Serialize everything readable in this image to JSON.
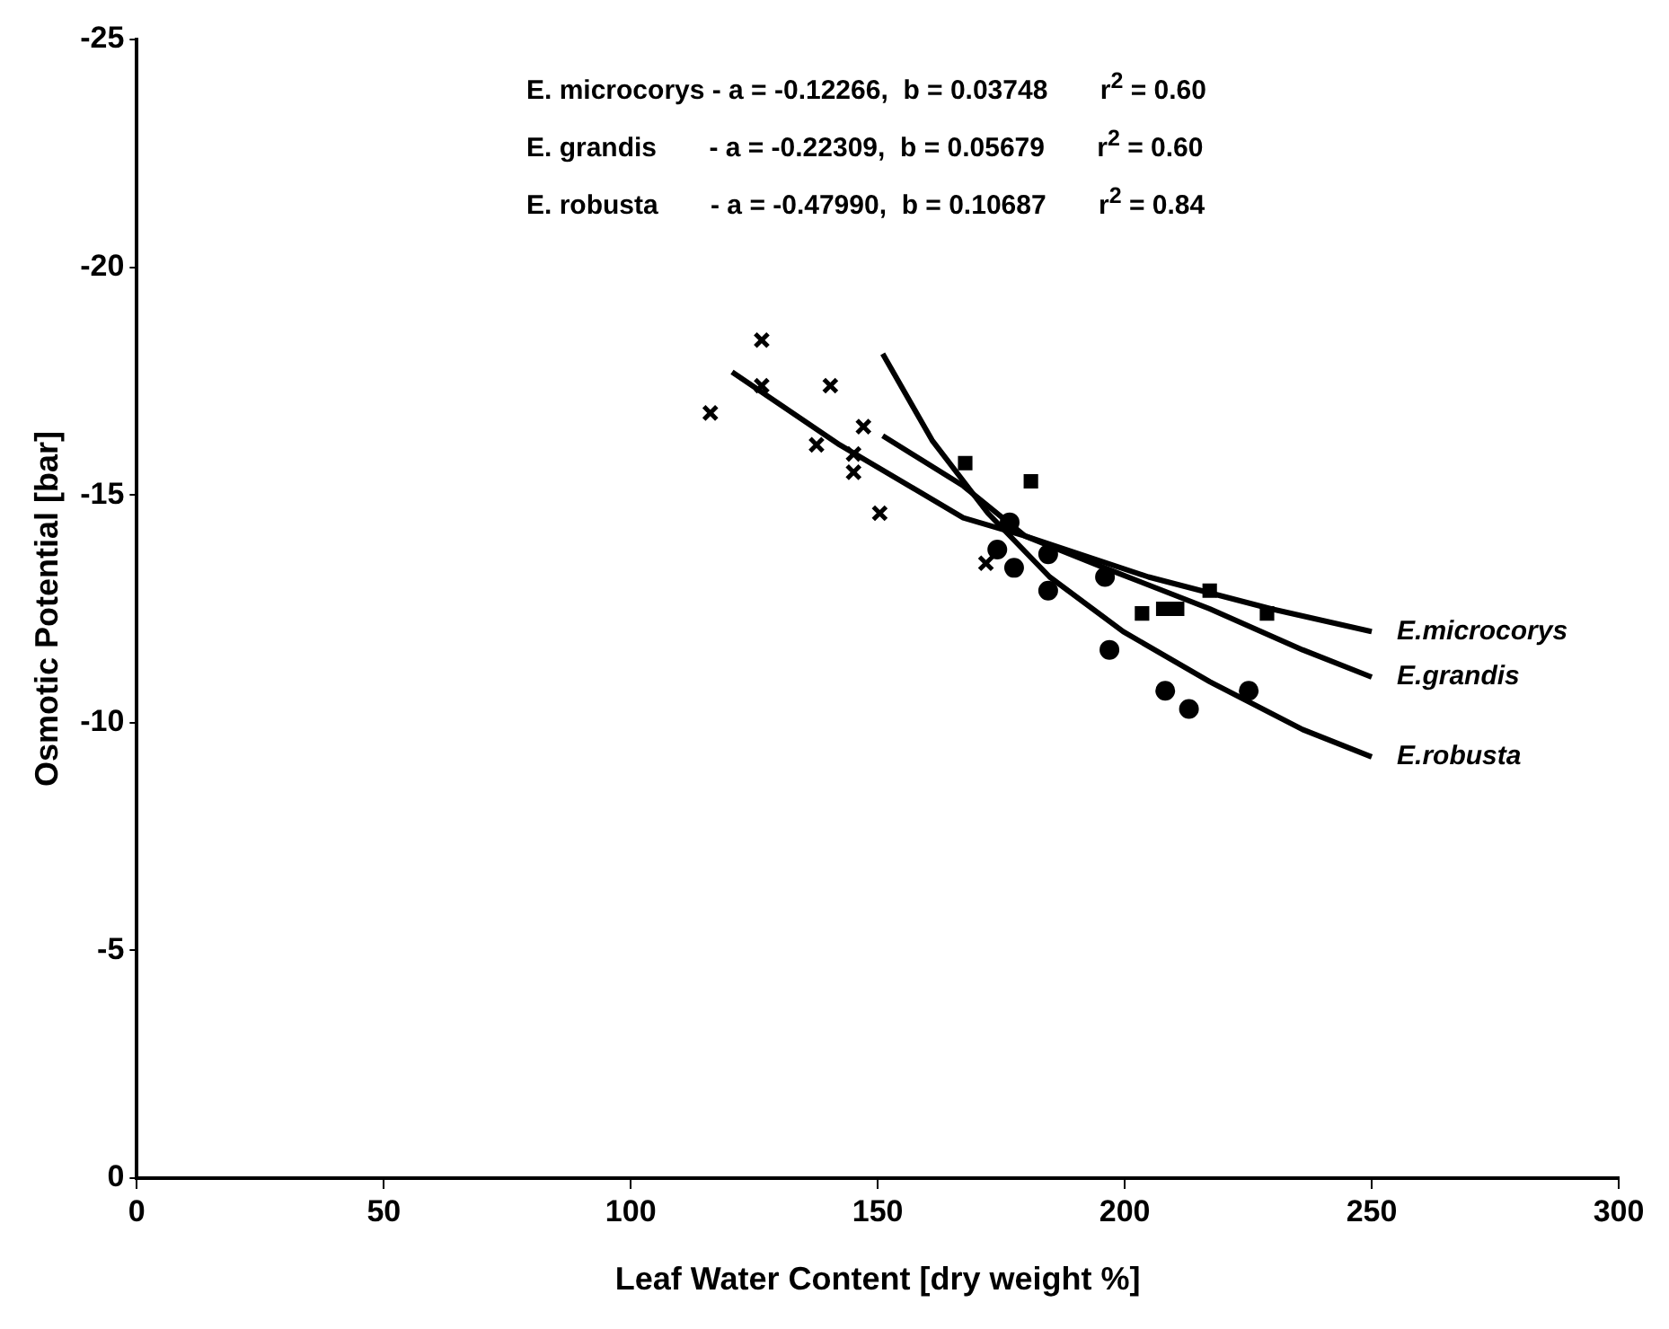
{
  "chart_data": {
    "type": "scatter",
    "xlabel": "Leaf Water Content [dry weight %]",
    "ylabel": "Osmotic Potential [bar]",
    "xlim": [
      0,
      300
    ],
    "xticks": [
      0,
      50,
      100,
      150,
      200,
      250,
      300
    ],
    "ylim": [
      0,
      -25
    ],
    "yticks": [
      0,
      -5,
      -10,
      -15,
      -20,
      -25
    ],
    "grid": false,
    "legend": false,
    "annotations": [
      "E. microcorys - a = -0.12266,  b = 0.03748       r$^{2}$ = 0.60",
      "E. grandis       - a = -0.22309,  b = 0.05679       r$^{2}$ = 0.60",
      "E. robusta       - a = -0.47990,  b = 0.10687       r$^{2}$ = 0.84"
    ],
    "series": [
      {
        "type": "scatter",
        "color": "#000000",
        "marker": "cross",
        "x": [
          116.1,
          126.5,
          126.5,
          140.4,
          137.6,
          147.1,
          145.1,
          145.1,
          150.4,
          171.9
        ],
        "values": [
          -16.8,
          -18.4,
          -17.4,
          -17.4,
          -16.1,
          -16.5,
          -15.9,
          -15.5,
          -14.6,
          -13.5
        ]
      },
      {
        "type": "scatter",
        "color": "#000000",
        "marker": "square",
        "x": [
          167.7,
          181.0,
          203.5,
          207.8,
          210.6,
          217.2,
          228.8
        ],
        "values": [
          -15.7,
          -15.3,
          -12.4,
          -12.5,
          -12.5,
          -12.9,
          -12.4
        ]
      },
      {
        "type": "scatter",
        "color": "#000000",
        "marker": "circle",
        "x": [
          174.2,
          176.7,
          177.6,
          184.5,
          184.5,
          196.0,
          196.9,
          208.2,
          213.0,
          225.1
        ],
        "values": [
          -13.8,
          -14.4,
          -13.4,
          -13.7,
          -12.9,
          -13.2,
          -11.6,
          -10.7,
          -10.3,
          -10.7
        ]
      },
      {
        "type": "line",
        "name": "E.microcorys",
        "color": "#000000",
        "marker": "none",
        "line_style": "solid",
        "x": [
          120.5,
          142.3,
          167.3,
          179.8,
          204.8,
          229.6,
          250
        ],
        "values": [
          -17.7,
          -16.1,
          -14.5,
          -14.1,
          -13.2,
          -12.5,
          -12.0
        ]
      },
      {
        "type": "line",
        "name": "E.grandis",
        "color": "#000000",
        "marker": "none",
        "line_style": "solid",
        "x": [
          151,
          167.3,
          179.8,
          195.9,
          217.2,
          236,
          250
        ],
        "values": [
          -16.3,
          -15.2,
          -14.1,
          -13.4,
          -12.5,
          -11.6,
          -11.0
        ]
      },
      {
        "type": "line",
        "name": "E.robusta",
        "color": "#000000",
        "marker": "none",
        "line_style": "solid",
        "x": [
          151,
          161,
          172.3,
          184.8,
          199.7,
          217.2,
          236,
          250
        ],
        "values": [
          -18.1,
          -16.2,
          -14.6,
          -13.2,
          -12.0,
          -10.9,
          -9.85,
          -9.25
        ]
      }
    ]
  }
}
